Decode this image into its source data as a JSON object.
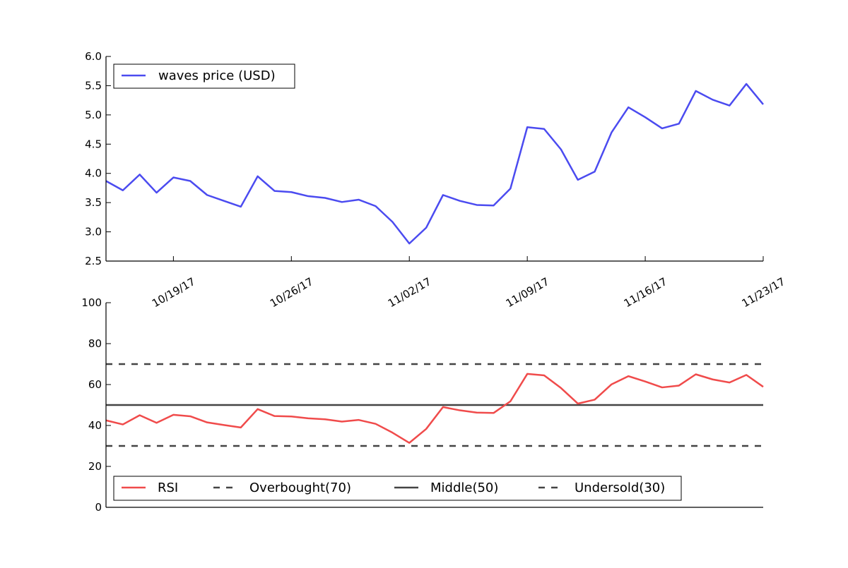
{
  "chart_data": [
    {
      "type": "line",
      "title": "",
      "xlabel": "",
      "ylabel": "",
      "x": [
        "10/15/17",
        "10/16/17",
        "10/17/17",
        "10/18/17",
        "10/19/17",
        "10/20/17",
        "10/21/17",
        "10/22/17",
        "10/23/17",
        "10/24/17",
        "10/25/17",
        "10/26/17",
        "10/27/17",
        "10/28/17",
        "10/29/17",
        "10/30/17",
        "10/31/17",
        "11/01/17",
        "11/02/17",
        "11/03/17",
        "11/04/17",
        "11/05/17",
        "11/06/17",
        "11/07/17",
        "11/08/17",
        "11/09/17",
        "11/10/17",
        "11/11/17",
        "11/12/17",
        "11/13/17",
        "11/14/17",
        "11/15/17",
        "11/16/17",
        "11/17/17",
        "11/18/17",
        "11/19/17",
        "11/20/17",
        "11/21/17",
        "11/22/17",
        "11/23/17"
      ],
      "series": [
        {
          "name": "waves price (USD)",
          "color": "#4b4bf0",
          "values": [
            3.87,
            3.71,
            3.98,
            3.67,
            3.93,
            3.87,
            3.63,
            3.53,
            3.43,
            3.95,
            3.7,
            3.68,
            3.61,
            3.58,
            3.51,
            3.55,
            3.44,
            3.17,
            2.8,
            3.07,
            3.63,
            3.53,
            3.46,
            3.45,
            3.74,
            4.79,
            4.76,
            4.41,
            3.89,
            4.03,
            4.7,
            5.13,
            4.96,
            4.77,
            4.85,
            5.41,
            5.26,
            5.16,
            5.53,
            5.18
          ]
        }
      ],
      "ylim": [
        2.5,
        6.0
      ],
      "yticks": [
        "2.5",
        "3.0",
        "3.5",
        "4.0",
        "4.5",
        "5.0",
        "5.5",
        "6.0"
      ],
      "xticks": [
        "10/19/17",
        "10/26/17",
        "11/02/17",
        "11/09/17",
        "11/16/17",
        "11/23/17"
      ],
      "legend": "upper-left",
      "grid": false
    },
    {
      "type": "line",
      "title": "",
      "xlabel": "",
      "ylabel": "",
      "series": [
        {
          "name": "RSI",
          "color": "#f04b4b",
          "style": "solid",
          "values": [
            42.5,
            40.5,
            45.0,
            41.3,
            45.2,
            44.5,
            41.5,
            40.2,
            39.0,
            48.0,
            44.6,
            44.4,
            43.5,
            43.0,
            41.9,
            42.7,
            40.8,
            36.5,
            31.5,
            38.3,
            49.0,
            47.4,
            46.3,
            46.1,
            51.8,
            65.2,
            64.5,
            58.3,
            50.7,
            52.6,
            60.1,
            64.1,
            61.5,
            58.6,
            59.5,
            65.0,
            62.5,
            61.0,
            64.7,
            58.9
          ]
        },
        {
          "name": "Overbought(70)",
          "color": "#444444",
          "style": "dashed",
          "constant": 70
        },
        {
          "name": "Middle(50)",
          "color": "#444444",
          "style": "solid",
          "constant": 50
        },
        {
          "name": "Undersold(30)",
          "color": "#444444",
          "style": "dashed",
          "constant": 30
        }
      ],
      "ylim": [
        0,
        100
      ],
      "yticks": [
        "0",
        "20",
        "40",
        "60",
        "80",
        "100"
      ],
      "legend": "lower-left",
      "grid": false
    }
  ]
}
